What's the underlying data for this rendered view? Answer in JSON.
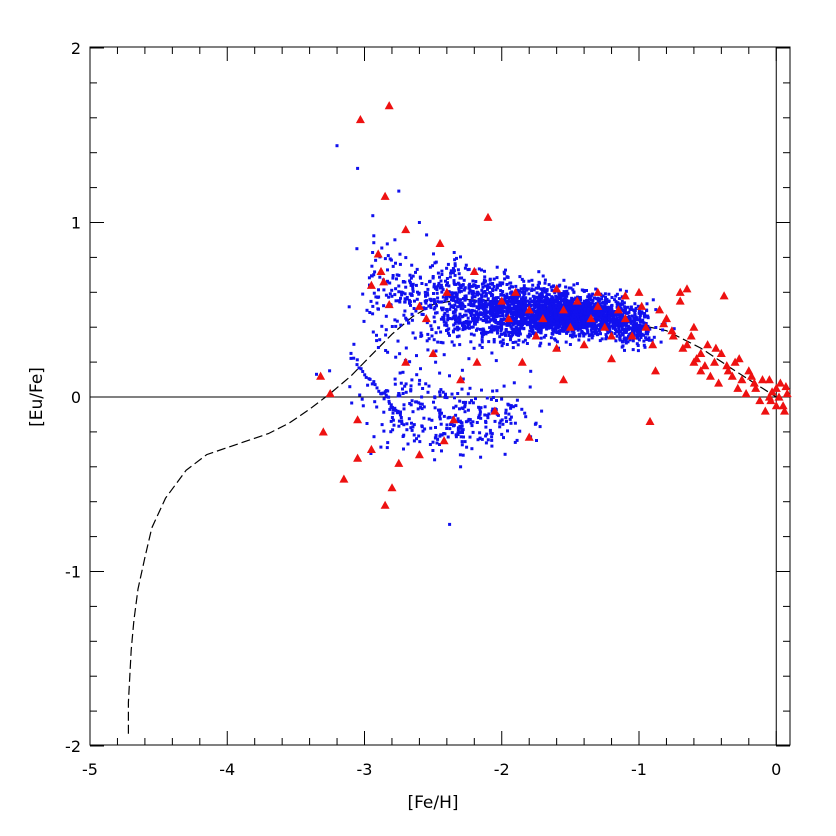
{
  "chart_data": {
    "type": "scatter",
    "xlabel": "[Fe/H]",
    "ylabel": "[Eu/Fe]",
    "xlim": [
      -5,
      0.1
    ],
    "ylim": [
      -2,
      2
    ],
    "xticks": [
      -5,
      -4,
      -3,
      -2,
      -1,
      0
    ],
    "yticks": [
      -2,
      -1,
      0,
      1,
      2
    ],
    "grid": false,
    "reference_lines": [
      {
        "axis": "y",
        "value": 0
      },
      {
        "axis": "x",
        "value": 0
      }
    ],
    "series": [
      {
        "kind": "simulated-points",
        "marker": "square",
        "color": "#1010ee",
        "clusters": [
          {
            "cx": -1.45,
            "cy": 0.47,
            "sx": 0.32,
            "sy": 0.08,
            "n": 1600
          },
          {
            "cx": -1.95,
            "cy": 0.5,
            "sx": 0.3,
            "sy": 0.13,
            "n": 900
          },
          {
            "cx": -2.45,
            "cy": 0.55,
            "sx": 0.3,
            "sy": 0.2,
            "n": 320
          },
          {
            "cx": -2.85,
            "cy": 0.62,
            "sx": 0.15,
            "sy": 0.22,
            "n": 60
          },
          {
            "cx": -2.25,
            "cy": -0.12,
            "sx": 0.35,
            "sy": 0.15,
            "n": 230
          },
          {
            "cx": -2.7,
            "cy": 0.02,
            "sx": 0.25,
            "sy": 0.18,
            "n": 80
          },
          {
            "cx": -1.05,
            "cy": 0.38,
            "sx": 0.12,
            "sy": 0.06,
            "n": 150
          }
        ],
        "extra_points": [
          {
            "x": -3.2,
            "y": 1.44
          },
          {
            "x": -3.05,
            "y": 1.31
          },
          {
            "x": -2.75,
            "y": 1.18
          },
          {
            "x": -2.6,
            "y": 1.0
          },
          {
            "x": -2.38,
            "y": -0.73
          },
          {
            "x": -3.35,
            "y": 0.13
          },
          {
            "x": -2.3,
            "y": -0.4
          },
          {
            "x": -1.75,
            "y": -0.15
          }
        ],
        "diagonal_streak": {
          "x0": -3.1,
          "y0": 0.24,
          "x1": -2.6,
          "y1": -0.25,
          "n": 40
        }
      },
      {
        "kind": "observations",
        "marker": "triangle",
        "color": "#ee1111",
        "points": [
          [
            -2.82,
            1.67
          ],
          [
            -3.03,
            1.59
          ],
          [
            -2.85,
            1.15
          ],
          [
            -2.1,
            1.03
          ],
          [
            -2.7,
            0.96
          ],
          [
            -2.9,
            0.82
          ],
          [
            -2.86,
            0.66
          ],
          [
            -2.95,
            0.64
          ],
          [
            -2.82,
            0.53
          ],
          [
            -2.6,
            0.52
          ],
          [
            -2.88,
            0.72
          ],
          [
            -2.45,
            0.88
          ],
          [
            -2.4,
            0.6
          ],
          [
            -2.2,
            0.72
          ],
          [
            -2.0,
            0.55
          ],
          [
            -1.9,
            0.6
          ],
          [
            -1.8,
            0.5
          ],
          [
            -1.7,
            0.45
          ],
          [
            -1.6,
            0.62
          ],
          [
            -1.55,
            0.5
          ],
          [
            -1.5,
            0.4
          ],
          [
            -1.45,
            0.55
          ],
          [
            -1.4,
            0.3
          ],
          [
            -1.35,
            0.45
          ],
          [
            -1.3,
            0.6
          ],
          [
            -1.25,
            0.4
          ],
          [
            -1.2,
            0.35
          ],
          [
            -1.15,
            0.5
          ],
          [
            -1.1,
            0.45
          ],
          [
            -1.05,
            0.35
          ],
          [
            -1.0,
            0.6
          ],
          [
            -0.95,
            0.4
          ],
          [
            -0.9,
            0.3
          ],
          [
            -0.85,
            0.5
          ],
          [
            -0.8,
            0.45
          ],
          [
            -0.75,
            0.35
          ],
          [
            -0.7,
            0.55
          ],
          [
            -0.65,
            0.3
          ],
          [
            -0.6,
            0.4
          ],
          [
            -0.55,
            0.25
          ],
          [
            -0.5,
            0.3
          ],
          [
            -0.45,
            0.2
          ],
          [
            -0.4,
            0.25
          ],
          [
            -0.35,
            0.15
          ],
          [
            -0.3,
            0.2
          ],
          [
            -0.25,
            0.1
          ],
          [
            -0.2,
            0.15
          ],
          [
            -0.15,
            0.05
          ],
          [
            -0.1,
            0.1
          ],
          [
            -0.05,
            0.0
          ],
          [
            0.0,
            0.05
          ],
          [
            0.05,
            -0.05
          ],
          [
            0.0,
            -0.05
          ],
          [
            -0.05,
            0.1
          ],
          [
            0.08,
            0.02
          ],
          [
            -0.7,
            0.6
          ],
          [
            -0.65,
            0.62
          ],
          [
            -0.6,
            0.2
          ],
          [
            -0.55,
            0.15
          ],
          [
            -0.48,
            0.12
          ],
          [
            -0.42,
            0.08
          ],
          [
            -0.38,
            0.58
          ],
          [
            -0.28,
            0.05
          ],
          [
            -0.22,
            0.02
          ],
          [
            -0.18,
            0.12
          ],
          [
            -0.12,
            -0.02
          ],
          [
            -0.08,
            -0.08
          ],
          [
            -0.03,
            0.03
          ],
          [
            0.03,
            0.08
          ],
          [
            0.06,
            -0.08
          ],
          [
            -0.88,
            0.15
          ],
          [
            -0.92,
            -0.14
          ],
          [
            -1.2,
            0.22
          ],
          [
            -1.6,
            0.28
          ],
          [
            -1.55,
            0.1
          ],
          [
            -1.85,
            0.2
          ],
          [
            -1.8,
            -0.23
          ],
          [
            -2.05,
            -0.08
          ],
          [
            -2.18,
            0.2
          ],
          [
            -2.35,
            -0.13
          ],
          [
            -2.42,
            -0.25
          ],
          [
            -2.6,
            -0.33
          ],
          [
            -2.75,
            -0.38
          ],
          [
            -2.95,
            -0.3
          ],
          [
            -3.05,
            -0.35
          ],
          [
            -3.15,
            -0.47
          ],
          [
            -3.3,
            -0.2
          ],
          [
            -3.05,
            -0.13
          ],
          [
            -2.8,
            -0.52
          ],
          [
            -2.85,
            -0.62
          ],
          [
            -3.25,
            0.02
          ],
          [
            -3.32,
            0.12
          ],
          [
            -2.7,
            0.2
          ],
          [
            -2.5,
            0.25
          ],
          [
            -2.3,
            0.1
          ],
          [
            -2.55,
            0.45
          ],
          [
            -1.95,
            0.45
          ],
          [
            -1.75,
            0.35
          ],
          [
            -1.3,
            0.52
          ],
          [
            -1.1,
            0.58
          ],
          [
            -0.98,
            0.52
          ],
          [
            -0.82,
            0.42
          ],
          [
            -0.76,
            0.38
          ],
          [
            -0.68,
            0.28
          ],
          [
            -0.62,
            0.35
          ],
          [
            -0.58,
            0.22
          ],
          [
            -0.52,
            0.18
          ],
          [
            -0.44,
            0.28
          ],
          [
            -0.36,
            0.18
          ],
          [
            -0.32,
            0.12
          ],
          [
            -0.27,
            0.22
          ],
          [
            -0.16,
            0.08
          ],
          [
            -0.04,
            -0.02
          ],
          [
            0.02,
            0.0
          ],
          [
            0.07,
            0.06
          ]
        ]
      },
      {
        "kind": "model-curve",
        "line": "dashed",
        "color": "#000000",
        "points": [
          [
            -4.72,
            -1.93
          ],
          [
            -4.72,
            -1.75
          ],
          [
            -4.71,
            -1.6
          ],
          [
            -4.7,
            -1.45
          ],
          [
            -4.68,
            -1.28
          ],
          [
            -4.65,
            -1.1
          ],
          [
            -4.6,
            -0.92
          ],
          [
            -4.55,
            -0.75
          ],
          [
            -4.45,
            -0.58
          ],
          [
            -4.3,
            -0.42
          ],
          [
            -4.15,
            -0.33
          ],
          [
            -4.0,
            -0.29
          ],
          [
            -3.85,
            -0.25
          ],
          [
            -3.7,
            -0.21
          ],
          [
            -3.55,
            -0.15
          ],
          [
            -3.4,
            -0.07
          ],
          [
            -3.25,
            0.02
          ],
          [
            -3.1,
            0.12
          ],
          [
            -2.95,
            0.24
          ],
          [
            -2.8,
            0.36
          ],
          [
            -2.65,
            0.46
          ],
          [
            -2.5,
            0.53
          ],
          [
            -2.3,
            0.56
          ],
          [
            -2.0,
            0.55
          ],
          [
            -1.7,
            0.52
          ],
          [
            -1.4,
            0.48
          ],
          [
            -1.1,
            0.43
          ],
          [
            -0.8,
            0.38
          ],
          [
            -0.55,
            0.28
          ],
          [
            -0.3,
            0.15
          ],
          [
            -0.1,
            0.05
          ],
          [
            0.0,
            0.0
          ]
        ]
      }
    ]
  }
}
